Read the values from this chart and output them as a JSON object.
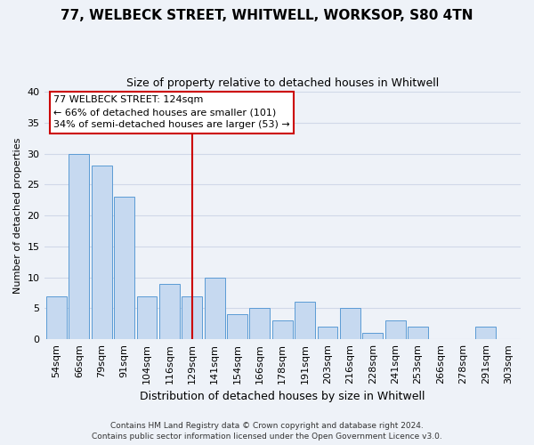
{
  "title1": "77, WELBECK STREET, WHITWELL, WORKSOP, S80 4TN",
  "title2": "Size of property relative to detached houses in Whitwell",
  "xlabel": "Distribution of detached houses by size in Whitwell",
  "ylabel": "Number of detached properties",
  "categories": [
    "54sqm",
    "66sqm",
    "79sqm",
    "91sqm",
    "104sqm",
    "116sqm",
    "129sqm",
    "141sqm",
    "154sqm",
    "166sqm",
    "178sqm",
    "191sqm",
    "203sqm",
    "216sqm",
    "228sqm",
    "241sqm",
    "253sqm",
    "266sqm",
    "278sqm",
    "291sqm",
    "303sqm"
  ],
  "values": [
    7,
    30,
    28,
    23,
    7,
    9,
    7,
    10,
    4,
    5,
    3,
    6,
    2,
    5,
    1,
    3,
    2,
    0,
    0,
    2,
    0
  ],
  "bar_color": "#c6d9f0",
  "bar_edge_color": "#5b9bd5",
  "highlight_index": 6,
  "highlight_line_color": "#cc0000",
  "ylim": [
    0,
    40
  ],
  "yticks": [
    0,
    5,
    10,
    15,
    20,
    25,
    30,
    35,
    40
  ],
  "annotation_line1": "77 WELBECK STREET: 124sqm",
  "annotation_line2": "← 66% of detached houses are smaller (101)",
  "annotation_line3": "34% of semi-detached houses are larger (53) →",
  "annotation_box_color": "#ffffff",
  "annotation_box_edge": "#cc0000",
  "footer1": "Contains HM Land Registry data © Crown copyright and database right 2024.",
  "footer2": "Contains public sector information licensed under the Open Government Licence v3.0.",
  "grid_color": "#d0d8e8",
  "background_color": "#eef2f8",
  "title1_fontsize": 11,
  "title2_fontsize": 9,
  "ylabel_fontsize": 8,
  "xlabel_fontsize": 9,
  "tick_fontsize": 8,
  "footer_fontsize": 6.5
}
